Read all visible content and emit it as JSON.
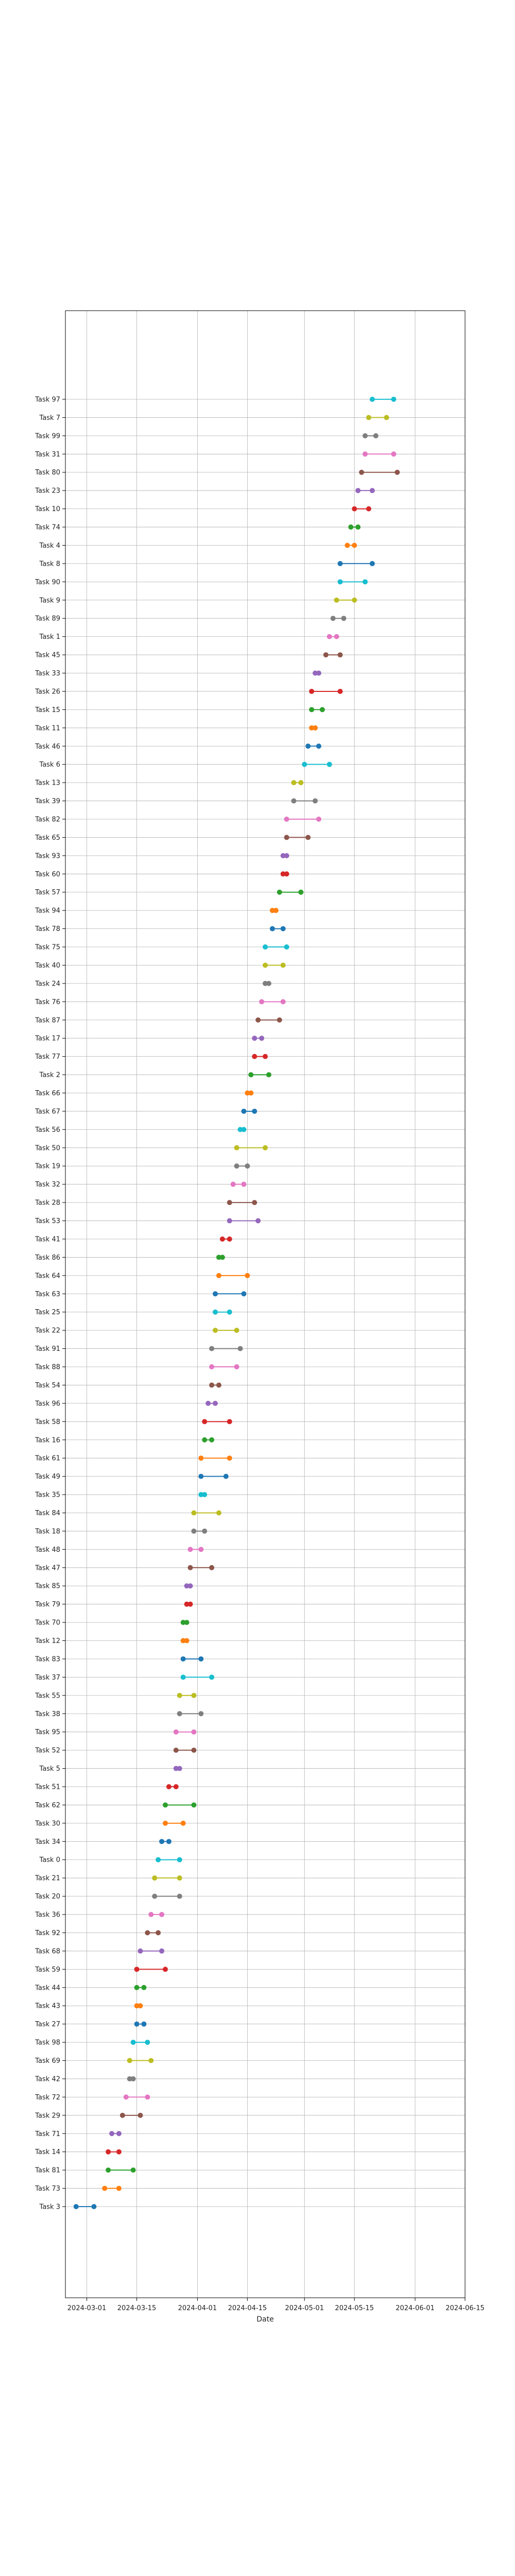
{
  "chart_data": {
    "type": "dumbbell",
    "xlabel": "Date",
    "ylabel": "",
    "x_ticks": [
      "2024-03-01",
      "2024-03-15",
      "2024-04-01",
      "2024-04-15",
      "2024-05-01",
      "2024-05-15",
      "2024-06-01",
      "2024-06-15"
    ],
    "xlim": [
      "2024-02-24",
      "2024-06-15"
    ],
    "grid": true,
    "tasks": [
      {
        "name": "Task 3",
        "start": "2024-02-27",
        "end": "2024-03-03"
      },
      {
        "name": "Task 73",
        "start": "2024-03-06",
        "end": "2024-03-10"
      },
      {
        "name": "Task 81",
        "start": "2024-03-07",
        "end": "2024-03-14"
      },
      {
        "name": "Task 14",
        "start": "2024-03-07",
        "end": "2024-03-10"
      },
      {
        "name": "Task 71",
        "start": "2024-03-08",
        "end": "2024-03-10"
      },
      {
        "name": "Task 29",
        "start": "2024-03-11",
        "end": "2024-03-16"
      },
      {
        "name": "Task 72",
        "start": "2024-03-12",
        "end": "2024-03-18"
      },
      {
        "name": "Task 42",
        "start": "2024-03-13",
        "end": "2024-03-14"
      },
      {
        "name": "Task 69",
        "start": "2024-03-13",
        "end": "2024-03-19"
      },
      {
        "name": "Task 98",
        "start": "2024-03-14",
        "end": "2024-03-18"
      },
      {
        "name": "Task 27",
        "start": "2024-03-15",
        "end": "2024-03-17"
      },
      {
        "name": "Task 43",
        "start": "2024-03-15",
        "end": "2024-03-16"
      },
      {
        "name": "Task 44",
        "start": "2024-03-15",
        "end": "2024-03-17"
      },
      {
        "name": "Task 59",
        "start": "2024-03-15",
        "end": "2024-03-23"
      },
      {
        "name": "Task 68",
        "start": "2024-03-16",
        "end": "2024-03-22"
      },
      {
        "name": "Task 92",
        "start": "2024-03-18",
        "end": "2024-03-21"
      },
      {
        "name": "Task 36",
        "start": "2024-03-19",
        "end": "2024-03-22"
      },
      {
        "name": "Task 20",
        "start": "2024-03-20",
        "end": "2024-03-27"
      },
      {
        "name": "Task 21",
        "start": "2024-03-20",
        "end": "2024-03-27"
      },
      {
        "name": "Task 0",
        "start": "2024-03-21",
        "end": "2024-03-27"
      },
      {
        "name": "Task 34",
        "start": "2024-03-22",
        "end": "2024-03-24"
      },
      {
        "name": "Task 30",
        "start": "2024-03-23",
        "end": "2024-03-28"
      },
      {
        "name": "Task 62",
        "start": "2024-03-23",
        "end": "2024-03-31"
      },
      {
        "name": "Task 51",
        "start": "2024-03-24",
        "end": "2024-03-26"
      },
      {
        "name": "Task 5",
        "start": "2024-03-26",
        "end": "2024-03-27"
      },
      {
        "name": "Task 52",
        "start": "2024-03-26",
        "end": "2024-03-31"
      },
      {
        "name": "Task 95",
        "start": "2024-03-26",
        "end": "2024-03-31"
      },
      {
        "name": "Task 38",
        "start": "2024-03-27",
        "end": "2024-04-02"
      },
      {
        "name": "Task 55",
        "start": "2024-03-27",
        "end": "2024-03-31"
      },
      {
        "name": "Task 37",
        "start": "2024-03-28",
        "end": "2024-04-05"
      },
      {
        "name": "Task 83",
        "start": "2024-03-28",
        "end": "2024-04-02"
      },
      {
        "name": "Task 12",
        "start": "2024-03-28",
        "end": "2024-03-29"
      },
      {
        "name": "Task 70",
        "start": "2024-03-28",
        "end": "2024-03-29"
      },
      {
        "name": "Task 79",
        "start": "2024-03-29",
        "end": "2024-03-30"
      },
      {
        "name": "Task 85",
        "start": "2024-03-29",
        "end": "2024-03-30"
      },
      {
        "name": "Task 47",
        "start": "2024-03-30",
        "end": "2024-04-05"
      },
      {
        "name": "Task 48",
        "start": "2024-03-30",
        "end": "2024-04-02"
      },
      {
        "name": "Task 18",
        "start": "2024-03-31",
        "end": "2024-04-03"
      },
      {
        "name": "Task 84",
        "start": "2024-03-31",
        "end": "2024-04-07"
      },
      {
        "name": "Task 35",
        "start": "2024-04-02",
        "end": "2024-04-03"
      },
      {
        "name": "Task 49",
        "start": "2024-04-02",
        "end": "2024-04-09"
      },
      {
        "name": "Task 61",
        "start": "2024-04-02",
        "end": "2024-04-10"
      },
      {
        "name": "Task 16",
        "start": "2024-04-03",
        "end": "2024-04-05"
      },
      {
        "name": "Task 58",
        "start": "2024-04-03",
        "end": "2024-04-10"
      },
      {
        "name": "Task 96",
        "start": "2024-04-04",
        "end": "2024-04-06"
      },
      {
        "name": "Task 54",
        "start": "2024-04-05",
        "end": "2024-04-07"
      },
      {
        "name": "Task 88",
        "start": "2024-04-05",
        "end": "2024-04-12"
      },
      {
        "name": "Task 91",
        "start": "2024-04-05",
        "end": "2024-04-13"
      },
      {
        "name": "Task 22",
        "start": "2024-04-06",
        "end": "2024-04-12"
      },
      {
        "name": "Task 25",
        "start": "2024-04-06",
        "end": "2024-04-10"
      },
      {
        "name": "Task 63",
        "start": "2024-04-06",
        "end": "2024-04-14"
      },
      {
        "name": "Task 64",
        "start": "2024-04-07",
        "end": "2024-04-15"
      },
      {
        "name": "Task 86",
        "start": "2024-04-07",
        "end": "2024-04-08"
      },
      {
        "name": "Task 41",
        "start": "2024-04-08",
        "end": "2024-04-10"
      },
      {
        "name": "Task 53",
        "start": "2024-04-10",
        "end": "2024-04-18"
      },
      {
        "name": "Task 28",
        "start": "2024-04-10",
        "end": "2024-04-17"
      },
      {
        "name": "Task 32",
        "start": "2024-04-11",
        "end": "2024-04-14"
      },
      {
        "name": "Task 19",
        "start": "2024-04-12",
        "end": "2024-04-15"
      },
      {
        "name": "Task 50",
        "start": "2024-04-12",
        "end": "2024-04-20"
      },
      {
        "name": "Task 56",
        "start": "2024-04-13",
        "end": "2024-04-14"
      },
      {
        "name": "Task 67",
        "start": "2024-04-14",
        "end": "2024-04-17"
      },
      {
        "name": "Task 66",
        "start": "2024-04-15",
        "end": "2024-04-16"
      },
      {
        "name": "Task 2",
        "start": "2024-04-16",
        "end": "2024-04-21"
      },
      {
        "name": "Task 77",
        "start": "2024-04-17",
        "end": "2024-04-20"
      },
      {
        "name": "Task 17",
        "start": "2024-04-17",
        "end": "2024-04-19"
      },
      {
        "name": "Task 87",
        "start": "2024-04-18",
        "end": "2024-04-24"
      },
      {
        "name": "Task 76",
        "start": "2024-04-19",
        "end": "2024-04-25"
      },
      {
        "name": "Task 24",
        "start": "2024-04-20",
        "end": "2024-04-21"
      },
      {
        "name": "Task 40",
        "start": "2024-04-20",
        "end": "2024-04-25"
      },
      {
        "name": "Task 75",
        "start": "2024-04-20",
        "end": "2024-04-26"
      },
      {
        "name": "Task 78",
        "start": "2024-04-22",
        "end": "2024-04-25"
      },
      {
        "name": "Task 94",
        "start": "2024-04-22",
        "end": "2024-04-23"
      },
      {
        "name": "Task 57",
        "start": "2024-04-24",
        "end": "2024-04-30"
      },
      {
        "name": "Task 60",
        "start": "2024-04-25",
        "end": "2024-04-26"
      },
      {
        "name": "Task 93",
        "start": "2024-04-25",
        "end": "2024-04-26"
      },
      {
        "name": "Task 65",
        "start": "2024-04-26",
        "end": "2024-05-02"
      },
      {
        "name": "Task 82",
        "start": "2024-04-26",
        "end": "2024-05-05"
      },
      {
        "name": "Task 39",
        "start": "2024-04-28",
        "end": "2024-05-04"
      },
      {
        "name": "Task 13",
        "start": "2024-04-28",
        "end": "2024-04-30"
      },
      {
        "name": "Task 6",
        "start": "2024-05-01",
        "end": "2024-05-08"
      },
      {
        "name": "Task 46",
        "start": "2024-05-02",
        "end": "2024-05-05"
      },
      {
        "name": "Task 11",
        "start": "2024-05-03",
        "end": "2024-05-04"
      },
      {
        "name": "Task 15",
        "start": "2024-05-03",
        "end": "2024-05-06"
      },
      {
        "name": "Task 26",
        "start": "2024-05-03",
        "end": "2024-05-11"
      },
      {
        "name": "Task 33",
        "start": "2024-05-04",
        "end": "2024-05-05"
      },
      {
        "name": "Task 45",
        "start": "2024-05-07",
        "end": "2024-05-11"
      },
      {
        "name": "Task 1",
        "start": "2024-05-08",
        "end": "2024-05-10"
      },
      {
        "name": "Task 89",
        "start": "2024-05-09",
        "end": "2024-05-12"
      },
      {
        "name": "Task 9",
        "start": "2024-05-10",
        "end": "2024-05-15"
      },
      {
        "name": "Task 90",
        "start": "2024-05-11",
        "end": "2024-05-18"
      },
      {
        "name": "Task 8",
        "start": "2024-05-11",
        "end": "2024-05-20"
      },
      {
        "name": "Task 4",
        "start": "2024-05-13",
        "end": "2024-05-15"
      },
      {
        "name": "Task 74",
        "start": "2024-05-14",
        "end": "2024-05-16"
      },
      {
        "name": "Task 10",
        "start": "2024-05-15",
        "end": "2024-05-19"
      },
      {
        "name": "Task 23",
        "start": "2024-05-16",
        "end": "2024-05-20"
      },
      {
        "name": "Task 80",
        "start": "2024-05-17",
        "end": "2024-05-27"
      },
      {
        "name": "Task 31",
        "start": "2024-05-18",
        "end": "2024-05-26"
      },
      {
        "name": "Task 99",
        "start": "2024-05-18",
        "end": "2024-05-21"
      },
      {
        "name": "Task 7",
        "start": "2024-05-19",
        "end": "2024-05-24"
      },
      {
        "name": "Task 97",
        "start": "2024-05-20",
        "end": "2024-05-26"
      }
    ],
    "colors": [
      "#1f77b4",
      "#ff7f0e",
      "#2ca02c",
      "#d62728",
      "#9467bd",
      "#8c564b",
      "#e377c2",
      "#7f7f7f",
      "#bcbd22",
      "#17becf"
    ]
  }
}
